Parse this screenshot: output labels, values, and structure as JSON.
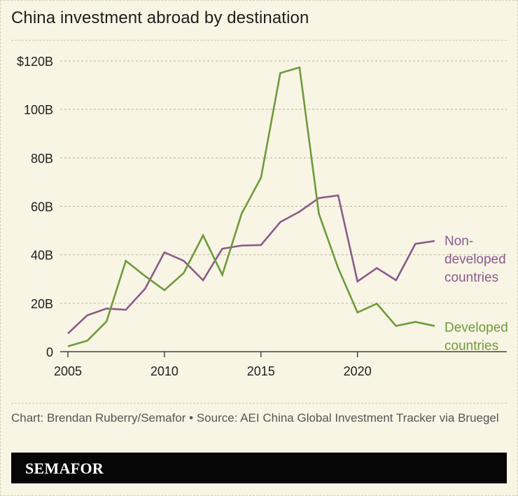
{
  "title": "China investment abroad by destination",
  "source": "Chart: Brendan Ruberry/Semafor • Source: AEI China Global Investment Tracker via Bruegel",
  "brand": "SEMAFOR",
  "chart_data": {
    "type": "line",
    "x": [
      2005,
      2006,
      2007,
      2008,
      2009,
      2010,
      2011,
      2012,
      2013,
      2014,
      2015,
      2016,
      2017,
      2018,
      2019,
      2020,
      2021,
      2022,
      2023,
      2024
    ],
    "xlim": [
      2005,
      2024
    ],
    "ylim": [
      0,
      120
    ],
    "y_ticks": [
      0,
      20,
      40,
      60,
      80,
      100,
      120
    ],
    "y_tick_labels": [
      "0",
      "20B",
      "40B",
      "60B",
      "80B",
      "100B",
      "$120B"
    ],
    "x_ticks": [
      2005,
      2010,
      2015,
      2020
    ],
    "x_tick_labels": [
      "2005",
      "2010",
      "2015",
      "2020"
    ],
    "grid": "horizontal-dashed",
    "series": [
      {
        "name": "Non-developed countries",
        "label_lines": [
          "Non-",
          "developed",
          "countries"
        ],
        "color": "#8b5a8c",
        "values": [
          7.5,
          15,
          17.8,
          17.3,
          26,
          41,
          37.5,
          29.5,
          42.5,
          43.8,
          44,
          53.5,
          57.8,
          63.4,
          64.5,
          29,
          34.5,
          29.5,
          44.5,
          45.7
        ]
      },
      {
        "name": "Developed countries",
        "label_lines": [
          "Developed",
          "countries"
        ],
        "color": "#6e9a3c",
        "values": [
          2.2,
          4.5,
          12.5,
          37.5,
          31.2,
          25.4,
          32.5,
          48,
          31.7,
          57,
          71.8,
          115,
          117.3,
          57,
          34.5,
          16.2,
          19.8,
          10.6,
          12.3,
          10.6
        ]
      }
    ]
  }
}
